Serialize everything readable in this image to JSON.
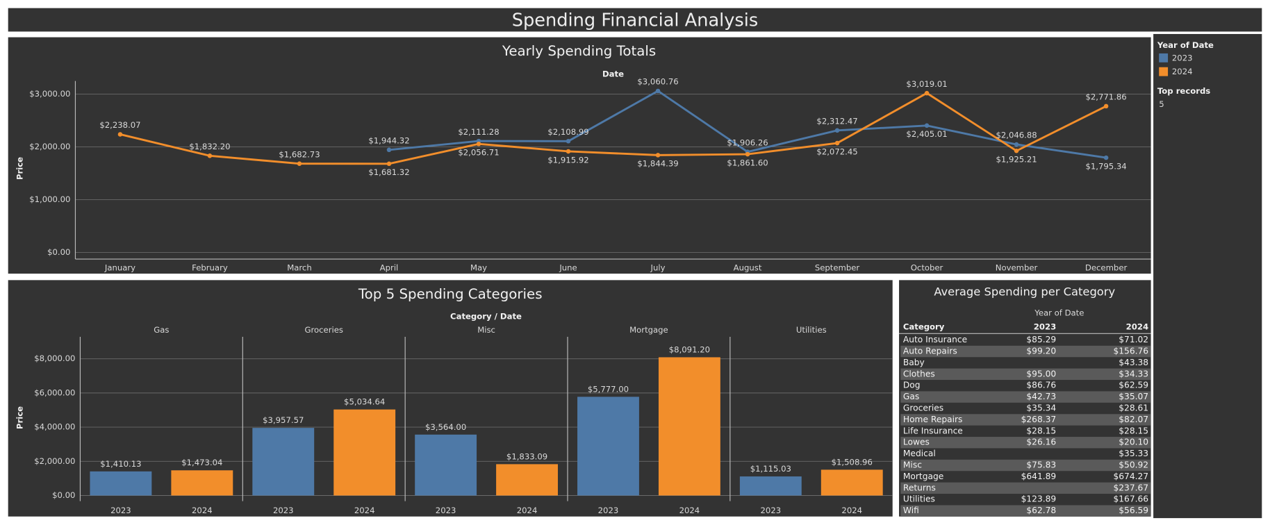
{
  "header": {
    "title": "Spending Financial Analysis"
  },
  "legend": {
    "title": "Year of Date",
    "items": [
      "2023",
      "2024"
    ]
  },
  "parameter": {
    "title": "Top records",
    "value": "5"
  },
  "chart_data": [
    {
      "type": "line",
      "title": "Yearly Spending Totals",
      "x_label": "Date",
      "y_label": "Price",
      "categories": [
        "January",
        "February",
        "March",
        "April",
        "May",
        "June",
        "July",
        "August",
        "September",
        "October",
        "November",
        "December"
      ],
      "series": [
        {
          "name": "2023",
          "color": "#4e79a7",
          "values": [
            null,
            null,
            null,
            1944.32,
            2111.28,
            2108.99,
            3060.76,
            1906.26,
            2312.47,
            2405.01,
            2046.88,
            1795.34
          ],
          "value_labels": [
            null,
            null,
            null,
            "$1,944.32",
            "$2,111.28",
            "$2,108.99",
            "$3,060.76",
            "$1,906.26",
            "$2,312.47",
            "$2,405.01",
            "$2,046.88",
            "$1,795.34"
          ]
        },
        {
          "name": "2024",
          "color": "#f28e2b",
          "values": [
            2238.07,
            1832.2,
            1682.73,
            1681.32,
            2056.71,
            1915.92,
            1844.39,
            1861.6,
            2072.45,
            3019.01,
            1925.21,
            2771.86
          ],
          "value_labels": [
            "$2,238.07",
            "$1,832.20",
            "$1,682.73",
            "$1,681.32",
            "$2,056.71",
            "$1,915.92",
            "$1,844.39",
            "$1,861.60",
            "$2,072.45",
            "$3,019.01",
            "$1,925.21",
            "$2,771.86"
          ]
        }
      ],
      "ylim": [
        -125,
        3250
      ],
      "yticks": [
        {
          "value": 0,
          "label": "$0.00"
        },
        {
          "value": 1000,
          "label": "$1,000.00"
        },
        {
          "value": 2000,
          "label": "$2,000.00"
        },
        {
          "value": 3000,
          "label": "$3,000.00"
        }
      ],
      "grid": true
    },
    {
      "type": "bar",
      "title": "Top 5 Spending Categories",
      "x_label": "Category / Date",
      "y_label": "Price",
      "categories": [
        "Gas",
        "Groceries",
        "Misc",
        "Mortgage",
        "Utilities"
      ],
      "series": [
        {
          "name": "2023",
          "color": "#4e79a7",
          "values": [
            1410.13,
            3957.57,
            3564.0,
            5777.0,
            1115.03
          ],
          "value_labels": [
            "$1,410.13",
            "$3,957.57",
            "$3,564.00",
            "$5,777.00",
            "$1,115.03"
          ]
        },
        {
          "name": "2024",
          "color": "#f28e2b",
          "values": [
            1473.04,
            5034.64,
            1833.09,
            8091.2,
            1508.96
          ],
          "value_labels": [
            "$1,473.04",
            "$5,034.64",
            "$1,833.09",
            "$8,091.20",
            "$1,508.96"
          ]
        }
      ],
      "ylim": [
        -330,
        9290
      ],
      "yticks": [
        {
          "value": 0,
          "label": "$0.00"
        },
        {
          "value": 2000,
          "label": "$2,000.00"
        },
        {
          "value": 4000,
          "label": "$4,000.00"
        },
        {
          "value": 6000,
          "label": "$6,000.00"
        },
        {
          "value": 8000,
          "label": "$8,000.00"
        }
      ],
      "grid": true
    }
  ],
  "table": {
    "title": "Average Spending per Category",
    "group_header": "Year of Date",
    "columns": [
      "Category",
      "2023",
      "2024"
    ],
    "rows": [
      [
        "Auto Insurance",
        "$85.29",
        "$71.02"
      ],
      [
        "Auto Repairs",
        "$99.20",
        "$156.76"
      ],
      [
        "Baby",
        null,
        "$43.38"
      ],
      [
        "Clothes",
        "$95.00",
        "$34.33"
      ],
      [
        "Dog",
        "$86.76",
        "$62.59"
      ],
      [
        "Gas",
        "$42.73",
        "$35.07"
      ],
      [
        "Groceries",
        "$35.34",
        "$28.61"
      ],
      [
        "Home Repairs",
        "$268.37",
        "$82.07"
      ],
      [
        "Life Insurance",
        "$28.15",
        "$28.15"
      ],
      [
        "Lowes",
        "$26.16",
        "$20.10"
      ],
      [
        "Medical",
        null,
        "$35.33"
      ],
      [
        "Misc",
        "$75.83",
        "$50.92"
      ],
      [
        "Mortgage",
        "$641.89",
        "$674.27"
      ],
      [
        "Returns",
        null,
        "$237.67"
      ],
      [
        "Utilities",
        "$123.89",
        "$167.66"
      ],
      [
        "Wifi",
        "$62.78",
        "$56.59"
      ]
    ]
  }
}
